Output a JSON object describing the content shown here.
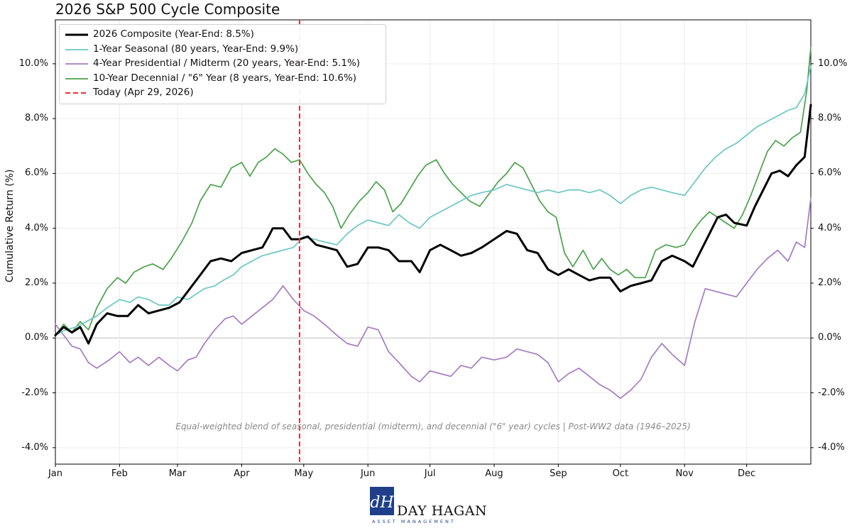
{
  "chart_data": {
    "type": "line",
    "title": "2026 S&P 500 Cycle Composite",
    "xlabel": "",
    "ylabel": "Cumulative Return (%)",
    "ylim": [
      -4.6,
      11.6
    ],
    "xlim": [
      0,
      365
    ],
    "y_ticks": [
      -4,
      -2,
      0,
      2,
      4,
      6,
      8,
      10
    ],
    "y_tick_labels": [
      "-4.0%",
      "-2.0%",
      "0.0%",
      "2.0%",
      "4.0%",
      "6.0%",
      "8.0%",
      "10.0%"
    ],
    "x_ticks": [
      0,
      31,
      59,
      90,
      120,
      151,
      181,
      212,
      243,
      273,
      304,
      334
    ],
    "x_tick_labels": [
      "Jan",
      "Feb",
      "Mar",
      "Apr",
      "May",
      "Jun",
      "Jul",
      "Aug",
      "Sep",
      "Oct",
      "Nov",
      "Dec"
    ],
    "grid": true,
    "legend_position": "top-left",
    "today": {
      "x": 118,
      "label": "Today (Apr 29, 2026)",
      "color": "#e8303a"
    },
    "annotation": "Equal-weighted blend of seasonal, presidential (midterm), and decennial (\"6\" year) cycles  |  Post-WW2 data (1946–2025)",
    "series": [
      {
        "name": "2026 Composite (Year-End: 8.5%)",
        "color": "#000000",
        "width": 3,
        "x": [
          0,
          4,
          8,
          12,
          16,
          20,
          25,
          30,
          35,
          40,
          45,
          50,
          55,
          60,
          65,
          70,
          75,
          80,
          85,
          90,
          95,
          100,
          103,
          105,
          110,
          114,
          118,
          122,
          126,
          131,
          136,
          141,
          146,
          151,
          156,
          161,
          166,
          172,
          176,
          181,
          186,
          191,
          196,
          201,
          206,
          212,
          218,
          223,
          228,
          233,
          238,
          243,
          248,
          253,
          258,
          263,
          268,
          273,
          278,
          283,
          288,
          293,
          298,
          304,
          308,
          312,
          316,
          320,
          324,
          328,
          334,
          338,
          342,
          346,
          350,
          354,
          358,
          362,
          365
        ],
        "y": [
          0.1,
          0.4,
          0.2,
          0.4,
          -0.2,
          0.5,
          0.9,
          0.8,
          0.8,
          1.2,
          0.9,
          1.0,
          1.1,
          1.3,
          1.8,
          2.3,
          2.8,
          2.9,
          2.8,
          3.1,
          3.2,
          3.3,
          3.7,
          4.0,
          4.0,
          3.6,
          3.6,
          3.7,
          3.4,
          3.3,
          3.2,
          2.6,
          2.7,
          3.3,
          3.3,
          3.2,
          2.8,
          2.8,
          2.4,
          3.2,
          3.4,
          3.2,
          3.0,
          3.1,
          3.3,
          3.6,
          3.9,
          3.8,
          3.2,
          3.1,
          2.5,
          2.3,
          2.5,
          2.3,
          2.1,
          2.2,
          2.2,
          1.7,
          1.9,
          2.0,
          2.1,
          2.8,
          3.0,
          2.8,
          2.6,
          3.2,
          3.8,
          4.4,
          4.5,
          4.2,
          4.1,
          4.8,
          5.4,
          6.0,
          6.1,
          5.9,
          6.3,
          6.6,
          8.5
        ]
      },
      {
        "name": "1-Year Seasonal (80 years, Year-End: 9.9%)",
        "color": "#6ac7c4",
        "width": 1.7,
        "x": [
          0,
          5,
          10,
          15,
          20,
          25,
          31,
          36,
          40,
          45,
          50,
          55,
          59,
          64,
          68,
          72,
          77,
          81,
          86,
          90,
          95,
          100,
          105,
          110,
          115,
          120,
          125,
          130,
          136,
          141,
          146,
          151,
          156,
          161,
          166,
          171,
          176,
          181,
          186,
          191,
          196,
          201,
          206,
          212,
          218,
          223,
          228,
          233,
          238,
          243,
          248,
          253,
          258,
          263,
          268,
          273,
          278,
          283,
          288,
          293,
          298,
          304,
          309,
          314,
          319,
          324,
          329,
          334,
          339,
          344,
          349,
          354,
          358,
          362,
          365
        ],
        "y": [
          0.1,
          0.3,
          0.4,
          0.6,
          0.8,
          1.1,
          1.4,
          1.3,
          1.5,
          1.4,
          1.2,
          1.2,
          1.5,
          1.4,
          1.6,
          1.8,
          1.9,
          2.1,
          2.3,
          2.6,
          2.8,
          3.0,
          3.1,
          3.2,
          3.3,
          3.7,
          3.6,
          3.5,
          3.4,
          3.8,
          4.1,
          4.3,
          4.2,
          4.1,
          4.5,
          4.2,
          4.0,
          4.4,
          4.6,
          4.8,
          5.0,
          5.2,
          5.3,
          5.4,
          5.6,
          5.5,
          5.4,
          5.3,
          5.4,
          5.3,
          5.4,
          5.4,
          5.3,
          5.4,
          5.2,
          4.9,
          5.2,
          5.4,
          5.5,
          5.4,
          5.3,
          5.2,
          5.7,
          6.2,
          6.6,
          6.9,
          7.1,
          7.4,
          7.7,
          7.9,
          8.1,
          8.3,
          8.4,
          8.9,
          9.9
        ]
      },
      {
        "name": "4-Year Presidential / Midterm (20 years, Year-End: 5.1%)",
        "color": "#a67bc2",
        "width": 1.7,
        "x": [
          0,
          4,
          8,
          12,
          16,
          20,
          26,
          31,
          36,
          40,
          45,
          50,
          55,
          59,
          64,
          68,
          72,
          77,
          82,
          86,
          90,
          95,
          100,
          105,
          110,
          115,
          120,
          125,
          130,
          136,
          141,
          146,
          151,
          156,
          161,
          166,
          172,
          176,
          181,
          186,
          191,
          196,
          201,
          206,
          212,
          218,
          223,
          228,
          233,
          238,
          243,
          248,
          253,
          258,
          263,
          268,
          273,
          278,
          283,
          288,
          293,
          298,
          304,
          309,
          314,
          319,
          324,
          329,
          334,
          339,
          344,
          349,
          354,
          358,
          362,
          365
        ],
        "y": [
          0.5,
          0.1,
          -0.3,
          -0.4,
          -0.9,
          -1.1,
          -0.8,
          -0.5,
          -0.9,
          -0.7,
          -1.0,
          -0.7,
          -1.0,
          -1.2,
          -0.8,
          -0.7,
          -0.2,
          0.3,
          0.7,
          0.8,
          0.5,
          0.8,
          1.1,
          1.4,
          1.9,
          1.4,
          1.0,
          0.8,
          0.5,
          0.1,
          -0.2,
          -0.3,
          0.4,
          0.3,
          -0.5,
          -0.9,
          -1.4,
          -1.6,
          -1.2,
          -1.3,
          -1.4,
          -1.0,
          -1.1,
          -0.7,
          -0.8,
          -0.7,
          -0.4,
          -0.5,
          -0.6,
          -0.9,
          -1.6,
          -1.3,
          -1.1,
          -1.4,
          -1.7,
          -1.9,
          -2.2,
          -1.9,
          -1.5,
          -0.7,
          -0.2,
          -0.6,
          -1.0,
          0.6,
          1.8,
          1.7,
          1.6,
          1.5,
          2.0,
          2.5,
          2.9,
          3.2,
          2.8,
          3.5,
          3.3,
          5.1
        ]
      },
      {
        "name": "10-Year Decennial / \"6\" Year (8 years, Year-End: 10.6%)",
        "color": "#49a24a",
        "width": 1.7,
        "x": [
          0,
          4,
          8,
          12,
          16,
          20,
          25,
          30,
          34,
          38,
          43,
          47,
          52,
          56,
          61,
          66,
          70,
          75,
          80,
          85,
          90,
          94,
          98,
          102,
          106,
          110,
          114,
          118,
          122,
          126,
          130,
          134,
          138,
          142,
          147,
          151,
          155,
          159,
          163,
          167,
          171,
          175,
          179,
          184,
          188,
          192,
          196,
          200,
          205,
          210,
          214,
          218,
          222,
          226,
          230,
          234,
          238,
          242,
          246,
          250,
          255,
          260,
          264,
          268,
          272,
          276,
          280,
          285,
          290,
          295,
          300,
          304,
          308,
          312,
          316,
          320,
          324,
          328,
          332,
          336,
          340,
          344,
          348,
          352,
          356,
          360,
          363,
          365
        ],
        "y": [
          0.1,
          0.5,
          0.2,
          0.6,
          0.3,
          1.1,
          1.8,
          2.2,
          2.0,
          2.4,
          2.6,
          2.7,
          2.5,
          2.9,
          3.5,
          4.2,
          5.0,
          5.6,
          5.5,
          6.2,
          6.4,
          5.9,
          6.4,
          6.6,
          6.9,
          6.7,
          6.4,
          6.5,
          6.0,
          5.6,
          5.3,
          4.8,
          4.0,
          4.5,
          5.0,
          5.3,
          5.7,
          5.4,
          4.6,
          4.9,
          5.4,
          5.9,
          6.3,
          6.5,
          6.0,
          5.6,
          5.3,
          5.0,
          4.8,
          5.3,
          5.7,
          6.0,
          6.4,
          6.2,
          5.6,
          5.0,
          4.6,
          4.4,
          3.1,
          2.6,
          3.2,
          2.5,
          2.9,
          2.5,
          2.3,
          2.5,
          2.2,
          2.2,
          3.2,
          3.4,
          3.3,
          3.4,
          3.9,
          4.3,
          4.6,
          4.4,
          4.2,
          4.0,
          4.5,
          5.2,
          6.0,
          6.8,
          7.2,
          7.0,
          7.3,
          7.5,
          9.0,
          10.6
        ]
      }
    ]
  },
  "logo": {
    "monogram": "dH",
    "name": "DAY HAGAN",
    "subtitle": "ASSET MANAGEMENT",
    "color": "#1f3f8a"
  }
}
